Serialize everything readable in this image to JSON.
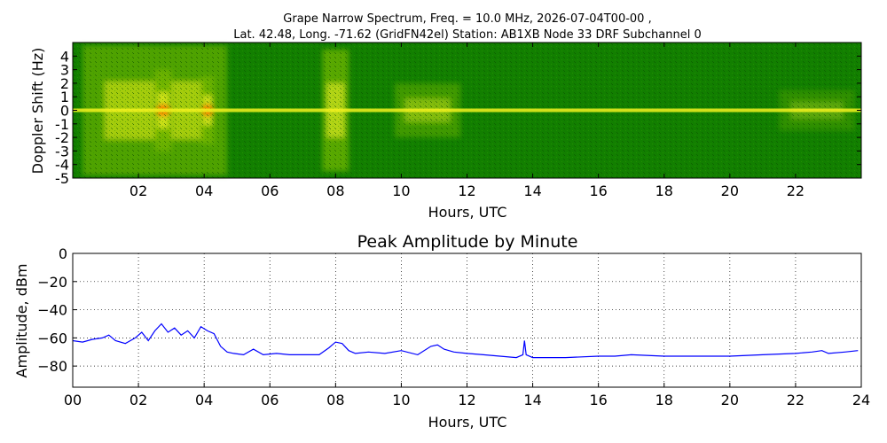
{
  "chart_data": [
    {
      "type": "heatmap",
      "title_lines": [
        "Grape Narrow Spectrum, Freq. = 10.0 MHz, 2026-07-04T00-00 ,",
        "Lat.  42.48, Long. -71.62 (GridFN42el) Station: AB1XB Node 33 DRF Subchannel 0"
      ],
      "xlabel": "Hours, UTC",
      "ylabel": "Doppler Shift (Hz)",
      "xlim": [
        0,
        24
      ],
      "ylim": [
        -5,
        5
      ],
      "x_ticks": [
        2,
        4,
        6,
        8,
        10,
        12,
        14,
        16,
        18,
        20,
        22
      ],
      "x_tick_labels": [
        "02",
        "04",
        "06",
        "08",
        "10",
        "12",
        "14",
        "16",
        "18",
        "20",
        "22"
      ],
      "y_ticks": [
        4,
        3,
        2,
        1,
        0,
        -1,
        -2,
        -3,
        -4,
        -5
      ],
      "y_tick_labels": [
        "4",
        "3",
        "2",
        "1",
        "0",
        "-1",
        "-2",
        "-3",
        "-4",
        "-5"
      ],
      "colors": {
        "background": "#127f00",
        "mid": "#6fb400",
        "bright": "#f2f21e",
        "hot": "#ff6a00"
      },
      "carrier_hz": 0,
      "activity_bands": [
        {
          "x0": 0.3,
          "x1": 4.7,
          "spread_hz": 4.8,
          "intensity": 0.75
        },
        {
          "x0": 2.5,
          "x1": 3.0,
          "spread_hz": 3.0,
          "intensity": 1.0
        },
        {
          "x0": 3.9,
          "x1": 4.3,
          "spread_hz": 2.5,
          "intensity": 1.0
        },
        {
          "x0": 7.6,
          "x1": 8.4,
          "spread_hz": 4.5,
          "intensity": 0.85
        },
        {
          "x0": 9.8,
          "x1": 11.8,
          "spread_hz": 2.0,
          "intensity": 0.55
        },
        {
          "x0": 21.5,
          "x1": 23.8,
          "spread_hz": 1.5,
          "intensity": 0.35
        }
      ]
    },
    {
      "type": "line",
      "title": "Peak Amplitude by Minute",
      "xlabel": "Hours, UTC",
      "ylabel": "Amplitude, dBm",
      "xlim": [
        0,
        24
      ],
      "ylim": [
        -95,
        0
      ],
      "x_ticks": [
        0,
        2,
        4,
        6,
        8,
        10,
        12,
        14,
        16,
        18,
        20,
        22,
        24
      ],
      "x_tick_labels": [
        "00",
        "02",
        "04",
        "06",
        "08",
        "10",
        "12",
        "14",
        "16",
        "18",
        "20",
        "22",
        "24"
      ],
      "y_ticks": [
        0,
        -20,
        -40,
        -60,
        -80
      ],
      "y_tick_labels": [
        "0",
        "−20",
        "−40",
        "−60",
        "−80"
      ],
      "grid": true,
      "series": [
        {
          "color": "#0000ff",
          "x": [
            0.0,
            0.3,
            0.6,
            0.9,
            1.1,
            1.3,
            1.6,
            1.9,
            2.1,
            2.3,
            2.5,
            2.7,
            2.9,
            3.1,
            3.3,
            3.5,
            3.7,
            3.9,
            4.1,
            4.3,
            4.5,
            4.7,
            4.9,
            5.2,
            5.5,
            5.8,
            6.2,
            6.6,
            7.0,
            7.5,
            7.8,
            8.0,
            8.2,
            8.4,
            8.6,
            9.0,
            9.5,
            10.0,
            10.5,
            10.9,
            11.1,
            11.3,
            11.6,
            12.0,
            12.5,
            13.0,
            13.5,
            13.7,
            13.75,
            13.8,
            14.0,
            15.0,
            16.0,
            16.5,
            17.0,
            18.0,
            19.0,
            20.0,
            21.0,
            22.0,
            22.5,
            22.8,
            23.0,
            23.5,
            23.9
          ],
          "y": [
            -62,
            -63,
            -61,
            -60,
            -58,
            -62,
            -64,
            -60,
            -56,
            -62,
            -55,
            -50,
            -56,
            -53,
            -58,
            -55,
            -60,
            -52,
            -55,
            -57,
            -66,
            -70,
            -71,
            -72,
            -68,
            -72,
            -71,
            -72,
            -72,
            -72,
            -67,
            -63,
            -64,
            -69,
            -71,
            -70,
            -71,
            -69,
            -72,
            -66,
            -65,
            -68,
            -70,
            -71,
            -72,
            -73,
            -74,
            -72,
            -62,
            -72,
            -74,
            -74,
            -73,
            -73,
            -72,
            -73,
            -73,
            -73,
            -72,
            -71,
            -70,
            -69,
            -71,
            -70,
            -69
          ]
        }
      ]
    }
  ]
}
